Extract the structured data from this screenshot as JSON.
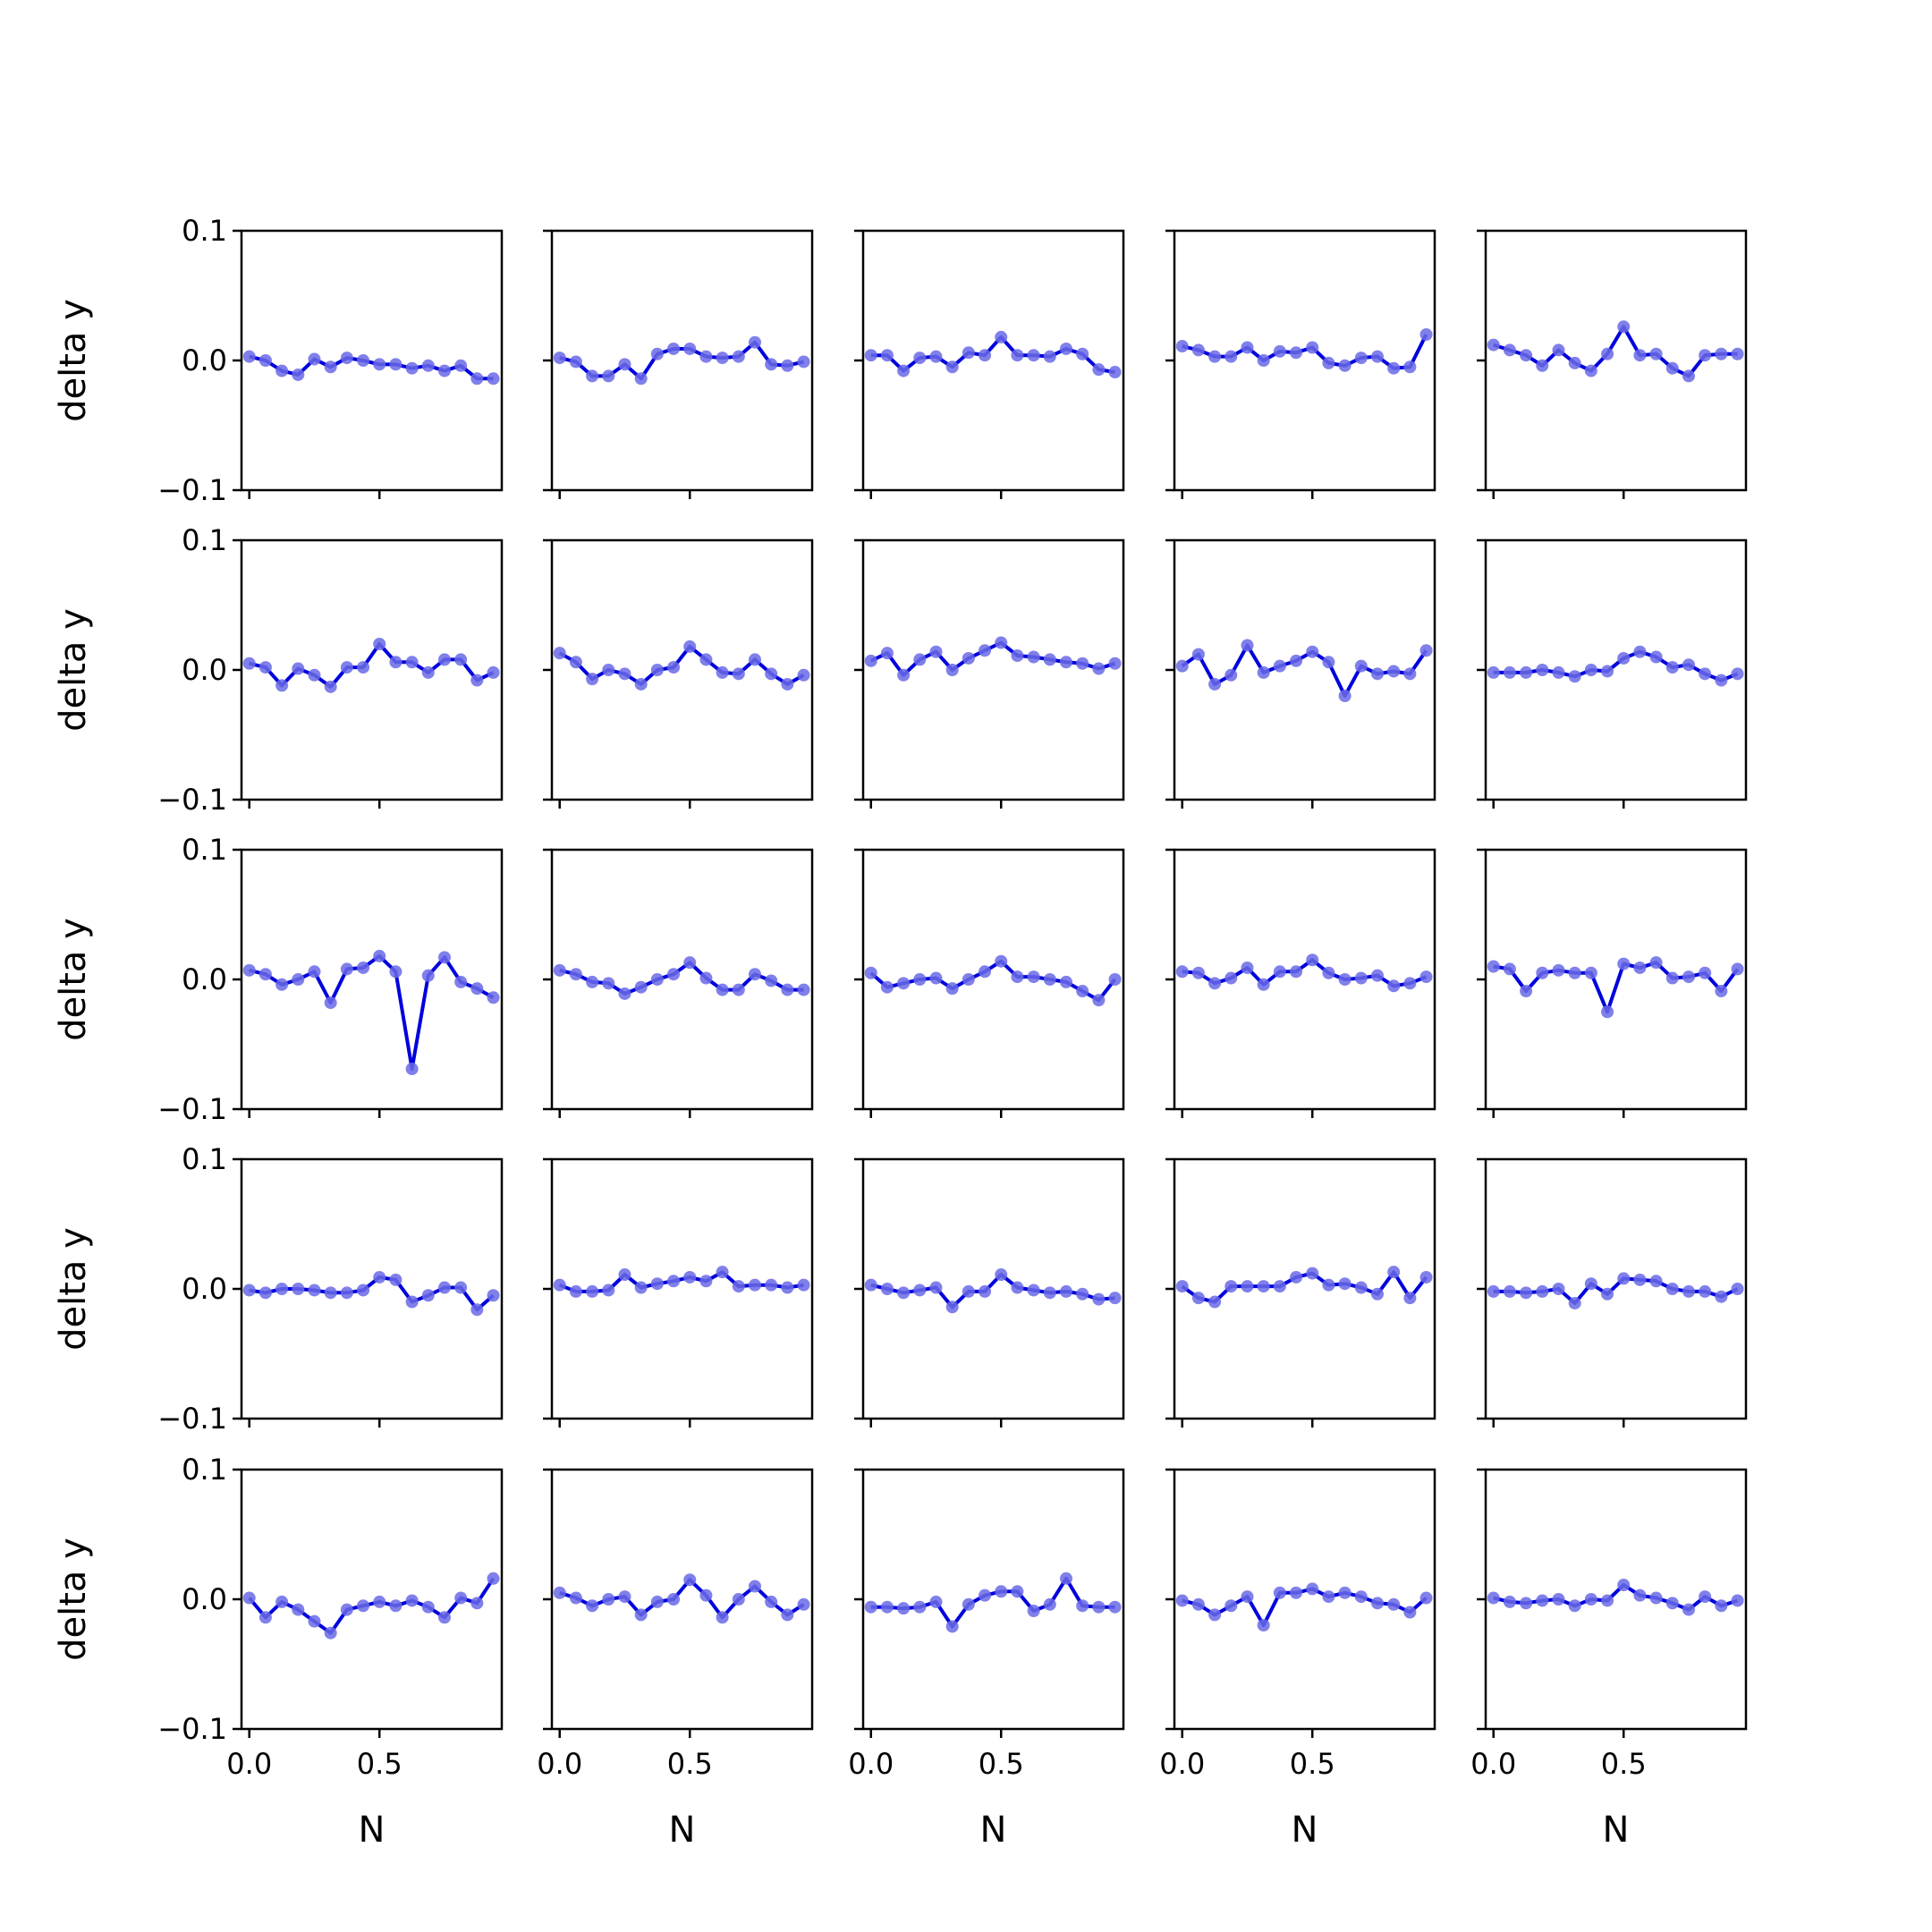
{
  "chart_data": {
    "type": "line",
    "layout": "5x5 grid of small multiples",
    "xlabel": "N",
    "ylabel": "delta y",
    "ylim": [
      -0.1,
      0.1
    ],
    "xlim": [
      -0.03,
      0.97
    ],
    "y_ticks": [
      -0.1,
      0.0,
      0.1
    ],
    "y_tick_labels": [
      "−0.1",
      "0.0",
      "0.1"
    ],
    "x_ticks": [
      0.0,
      0.5
    ],
    "x_tick_labels": [
      "0.0",
      "0.5"
    ],
    "x": [
      0.0,
      0.0625,
      0.125,
      0.1875,
      0.25,
      0.3125,
      0.375,
      0.4375,
      0.5,
      0.5625,
      0.625,
      0.6875,
      0.75,
      0.8125,
      0.875,
      0.9375
    ],
    "line_color": "#0000dd",
    "marker_color": "#6a6ae6",
    "panels": [
      {
        "values": [
          0.003,
          0.0,
          -0.008,
          -0.011,
          0.001,
          -0.005,
          0.002,
          0.0,
          -0.003,
          -0.003,
          -0.006,
          -0.004,
          -0.008,
          -0.004,
          -0.014,
          -0.014
        ]
      },
      {
        "values": [
          0.002,
          -0.001,
          -0.012,
          -0.012,
          -0.003,
          -0.014,
          0.005,
          0.009,
          0.009,
          0.003,
          0.002,
          0.003,
          0.014,
          -0.003,
          -0.004,
          -0.001
        ]
      },
      {
        "values": [
          0.004,
          0.004,
          -0.008,
          0.002,
          0.003,
          -0.005,
          0.006,
          0.004,
          0.018,
          0.004,
          0.004,
          0.003,
          0.009,
          0.005,
          -0.007,
          -0.009
        ]
      },
      {
        "values": [
          0.011,
          0.008,
          0.003,
          0.003,
          0.01,
          0.0,
          0.007,
          0.006,
          0.01,
          -0.002,
          -0.004,
          0.002,
          0.003,
          -0.006,
          -0.005,
          0.02
        ]
      },
      {
        "values": [
          0.012,
          0.008,
          0.004,
          -0.004,
          0.008,
          -0.002,
          -0.008,
          0.005,
          0.026,
          0.004,
          0.005,
          -0.006,
          -0.012,
          0.004,
          0.005,
          0.005
        ]
      },
      {
        "values": [
          0.005,
          0.002,
          -0.012,
          0.001,
          -0.004,
          -0.013,
          0.002,
          0.002,
          0.02,
          0.006,
          0.006,
          -0.002,
          0.008,
          0.008,
          -0.008,
          -0.002
        ]
      },
      {
        "values": [
          0.013,
          0.006,
          -0.007,
          0.0,
          -0.003,
          -0.011,
          0.0,
          0.002,
          0.018,
          0.008,
          -0.002,
          -0.003,
          0.008,
          -0.003,
          -0.011,
          -0.004
        ]
      },
      {
        "values": [
          0.007,
          0.013,
          -0.004,
          0.008,
          0.014,
          0.0,
          0.009,
          0.015,
          0.021,
          0.011,
          0.01,
          0.008,
          0.006,
          0.005,
          0.001,
          0.005
        ]
      },
      {
        "values": [
          0.003,
          0.012,
          -0.011,
          -0.004,
          0.019,
          -0.002,
          0.003,
          0.007,
          0.014,
          0.006,
          -0.02,
          0.003,
          -0.003,
          -0.001,
          -0.003,
          0.015
        ]
      },
      {
        "values": [
          -0.002,
          -0.002,
          -0.002,
          0.0,
          -0.002,
          -0.005,
          0.0,
          -0.001,
          0.009,
          0.014,
          0.01,
          0.002,
          0.004,
          -0.003,
          -0.008,
          -0.003
        ]
      },
      {
        "values": [
          0.007,
          0.004,
          -0.004,
          0.0,
          0.006,
          -0.018,
          0.008,
          0.009,
          0.018,
          0.006,
          -0.069,
          0.003,
          0.017,
          -0.002,
          -0.007,
          -0.014
        ]
      },
      {
        "values": [
          0.007,
          0.004,
          -0.002,
          -0.003,
          -0.011,
          -0.006,
          0.0,
          0.004,
          0.013,
          0.001,
          -0.008,
          -0.008,
          0.004,
          -0.001,
          -0.008,
          -0.008
        ]
      },
      {
        "values": [
          0.005,
          -0.006,
          -0.003,
          0.0,
          0.001,
          -0.007,
          0.0,
          0.006,
          0.014,
          0.002,
          0.002,
          0.0,
          -0.002,
          -0.009,
          -0.016,
          0.0
        ]
      },
      {
        "values": [
          0.006,
          0.005,
          -0.003,
          0.001,
          0.009,
          -0.004,
          0.006,
          0.006,
          0.015,
          0.005,
          0.0,
          0.001,
          0.003,
          -0.005,
          -0.003,
          0.002
        ]
      },
      {
        "values": [
          0.01,
          0.008,
          -0.009,
          0.005,
          0.007,
          0.005,
          0.005,
          -0.025,
          0.012,
          0.009,
          0.013,
          0.001,
          0.002,
          0.005,
          -0.009,
          0.008
        ]
      },
      {
        "values": [
          -0.001,
          -0.003,
          0.0,
          0.0,
          -0.001,
          -0.003,
          -0.003,
          -0.001,
          0.009,
          0.007,
          -0.01,
          -0.005,
          0.001,
          0.001,
          -0.016,
          -0.005
        ]
      },
      {
        "values": [
          0.003,
          -0.002,
          -0.002,
          -0.001,
          0.011,
          0.001,
          0.004,
          0.006,
          0.009,
          0.006,
          0.013,
          0.002,
          0.003,
          0.003,
          0.001,
          0.003
        ]
      },
      {
        "values": [
          0.003,
          0.0,
          -0.003,
          -0.001,
          0.001,
          -0.014,
          -0.002,
          -0.002,
          0.011,
          0.001,
          -0.001,
          -0.003,
          -0.002,
          -0.004,
          -0.008,
          -0.007
        ]
      },
      {
        "values": [
          0.002,
          -0.007,
          -0.01,
          0.002,
          0.002,
          0.002,
          0.002,
          0.009,
          0.012,
          0.003,
          0.004,
          0.001,
          -0.004,
          0.013,
          -0.007,
          0.009
        ]
      },
      {
        "values": [
          -0.002,
          -0.002,
          -0.003,
          -0.002,
          0.0,
          -0.011,
          0.004,
          -0.004,
          0.008,
          0.007,
          0.006,
          0.0,
          -0.002,
          -0.002,
          -0.006,
          0.0
        ]
      },
      {
        "values": [
          0.001,
          -0.014,
          -0.002,
          -0.008,
          -0.017,
          -0.026,
          -0.008,
          -0.005,
          -0.002,
          -0.005,
          -0.001,
          -0.006,
          -0.014,
          0.001,
          -0.003,
          0.016
        ]
      },
      {
        "values": [
          0.005,
          0.001,
          -0.005,
          0.0,
          0.002,
          -0.012,
          -0.002,
          0.0,
          0.015,
          0.003,
          -0.014,
          0.0,
          0.01,
          -0.002,
          -0.012,
          -0.004
        ]
      },
      {
        "values": [
          -0.006,
          -0.006,
          -0.007,
          -0.006,
          -0.002,
          -0.021,
          -0.004,
          0.003,
          0.006,
          0.006,
          -0.009,
          -0.004,
          0.016,
          -0.005,
          -0.006,
          -0.006
        ]
      },
      {
        "values": [
          -0.001,
          -0.004,
          -0.012,
          -0.005,
          0.002,
          -0.02,
          0.005,
          0.005,
          0.008,
          0.002,
          0.005,
          0.002,
          -0.003,
          -0.004,
          -0.01,
          0.001
        ]
      },
      {
        "values": [
          0.001,
          -0.002,
          -0.003,
          -0.001,
          0.0,
          -0.005,
          0.0,
          -0.001,
          0.011,
          0.003,
          0.001,
          -0.003,
          -0.008,
          0.002,
          -0.005,
          -0.001
        ]
      }
    ]
  }
}
